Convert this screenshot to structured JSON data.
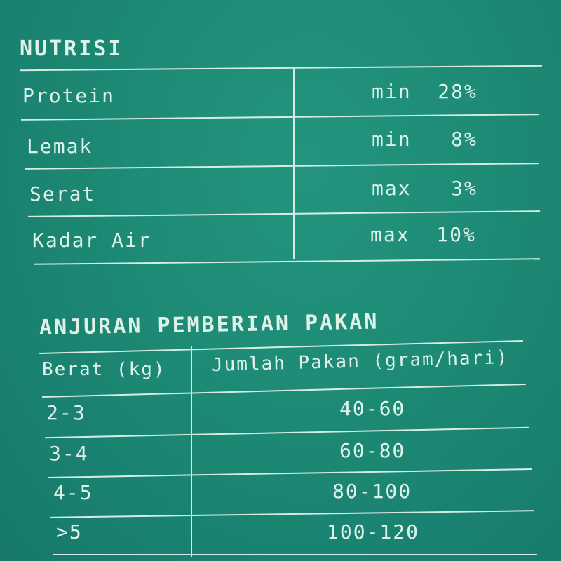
{
  "nutrition": {
    "title": "NUTRISI",
    "rows": [
      {
        "name": "Protein",
        "value": "min  28%"
      },
      {
        "name": "Lemak",
        "value": "min   8%"
      },
      {
        "name": "Serat",
        "value": "max   3%"
      },
      {
        "name": "Kadar Air",
        "value": "max  10%"
      }
    ]
  },
  "feeding": {
    "title": "ANJURAN PEMBERIAN PAKAN",
    "headers": [
      "Berat (kg)",
      "Jumlah Pakan (gram/hari)"
    ],
    "rows": [
      {
        "weight": "2-3",
        "amount": "40-60"
      },
      {
        "weight": "3-4",
        "amount": "60-80"
      },
      {
        "weight": "4-5",
        "amount": "80-100"
      },
      {
        "weight": ">5",
        "amount": "100-120"
      }
    ]
  },
  "colors": {
    "background": "#1e8a76",
    "text": "#dff2ea"
  }
}
